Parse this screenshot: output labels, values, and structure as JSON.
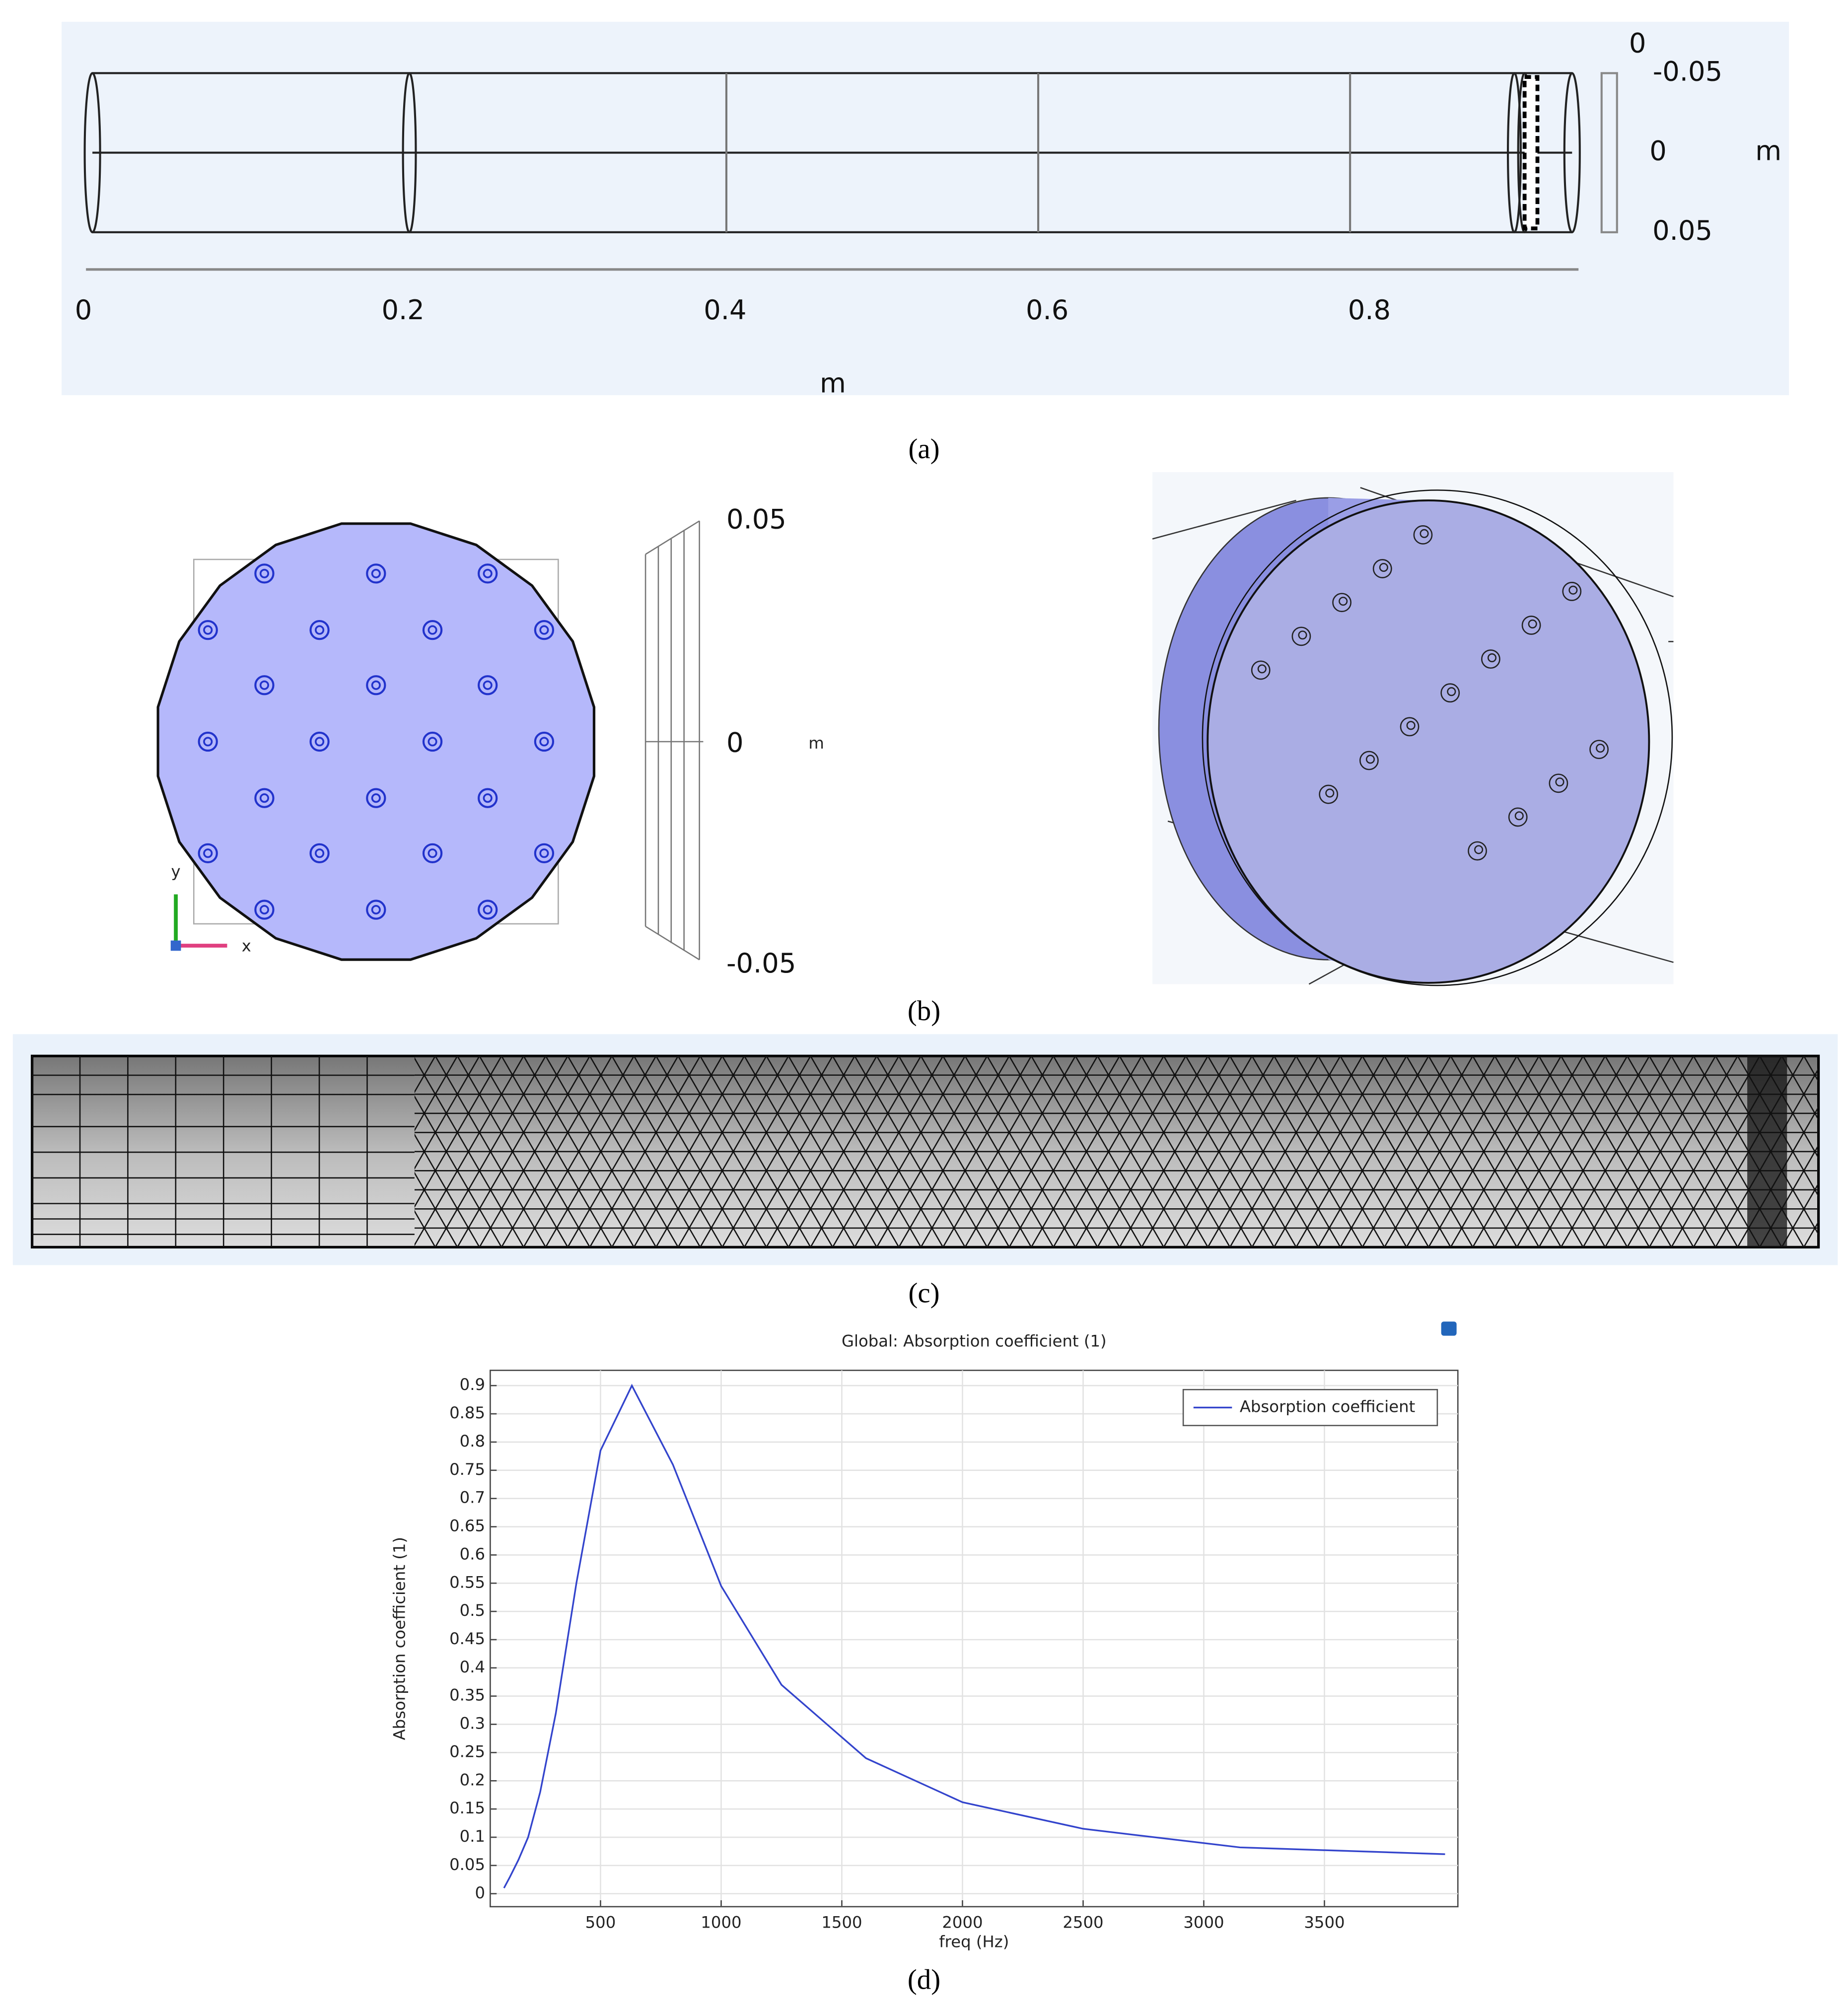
{
  "panel_a": {
    "x_labels": [
      0,
      0.2,
      0.4,
      0.6,
      0.8
    ],
    "x_unit": "m",
    "y_labels": [
      0,
      -0.05,
      0,
      0.05
    ],
    "y_unit": "m",
    "caption": "(a)"
  },
  "panel_b": {
    "scale_labels": [
      0.05,
      0,
      -0.05
    ],
    "scale_unit": "m",
    "axis_y": "y",
    "axis_x": "x",
    "caption": "(b)"
  },
  "panel_c": {
    "caption": "(c)"
  },
  "chart_data": {
    "type": "line",
    "title": "Global: Absorption coefficient (1)",
    "x_label": "freq (Hz)",
    "y_label": "Absorption coefficient (1)",
    "x": [
      100,
      125,
      160,
      200,
      250,
      315,
      400,
      500,
      630,
      800,
      1000,
      1250,
      1600,
      2000,
      2500,
      3150,
      4000
    ],
    "series": [
      {
        "name": "Absorption coefficient",
        "color": "#3344cc",
        "values": [
          0.01,
          0.03,
          0.06,
          0.1,
          0.18,
          0.32,
          0.55,
          0.785,
          0.9,
          0.76,
          0.545,
          0.37,
          0.24,
          0.162,
          0.115,
          0.082,
          0.07
        ]
      }
    ],
    "xlim": [
      43,
      4053
    ],
    "ylim": [
      -0.023,
      0.927
    ],
    "xticks": [
      500,
      1000,
      1500,
      2000,
      2500,
      3000,
      3500
    ],
    "yticks": [
      0,
      0.05,
      0.1,
      0.15,
      0.2,
      0.25,
      0.3,
      0.35,
      0.4,
      0.45,
      0.5,
      0.55,
      0.6,
      0.65,
      0.7,
      0.75,
      0.8,
      0.85,
      0.9
    ],
    "grid": true,
    "legend": "upper-right",
    "caption": "(d)"
  }
}
